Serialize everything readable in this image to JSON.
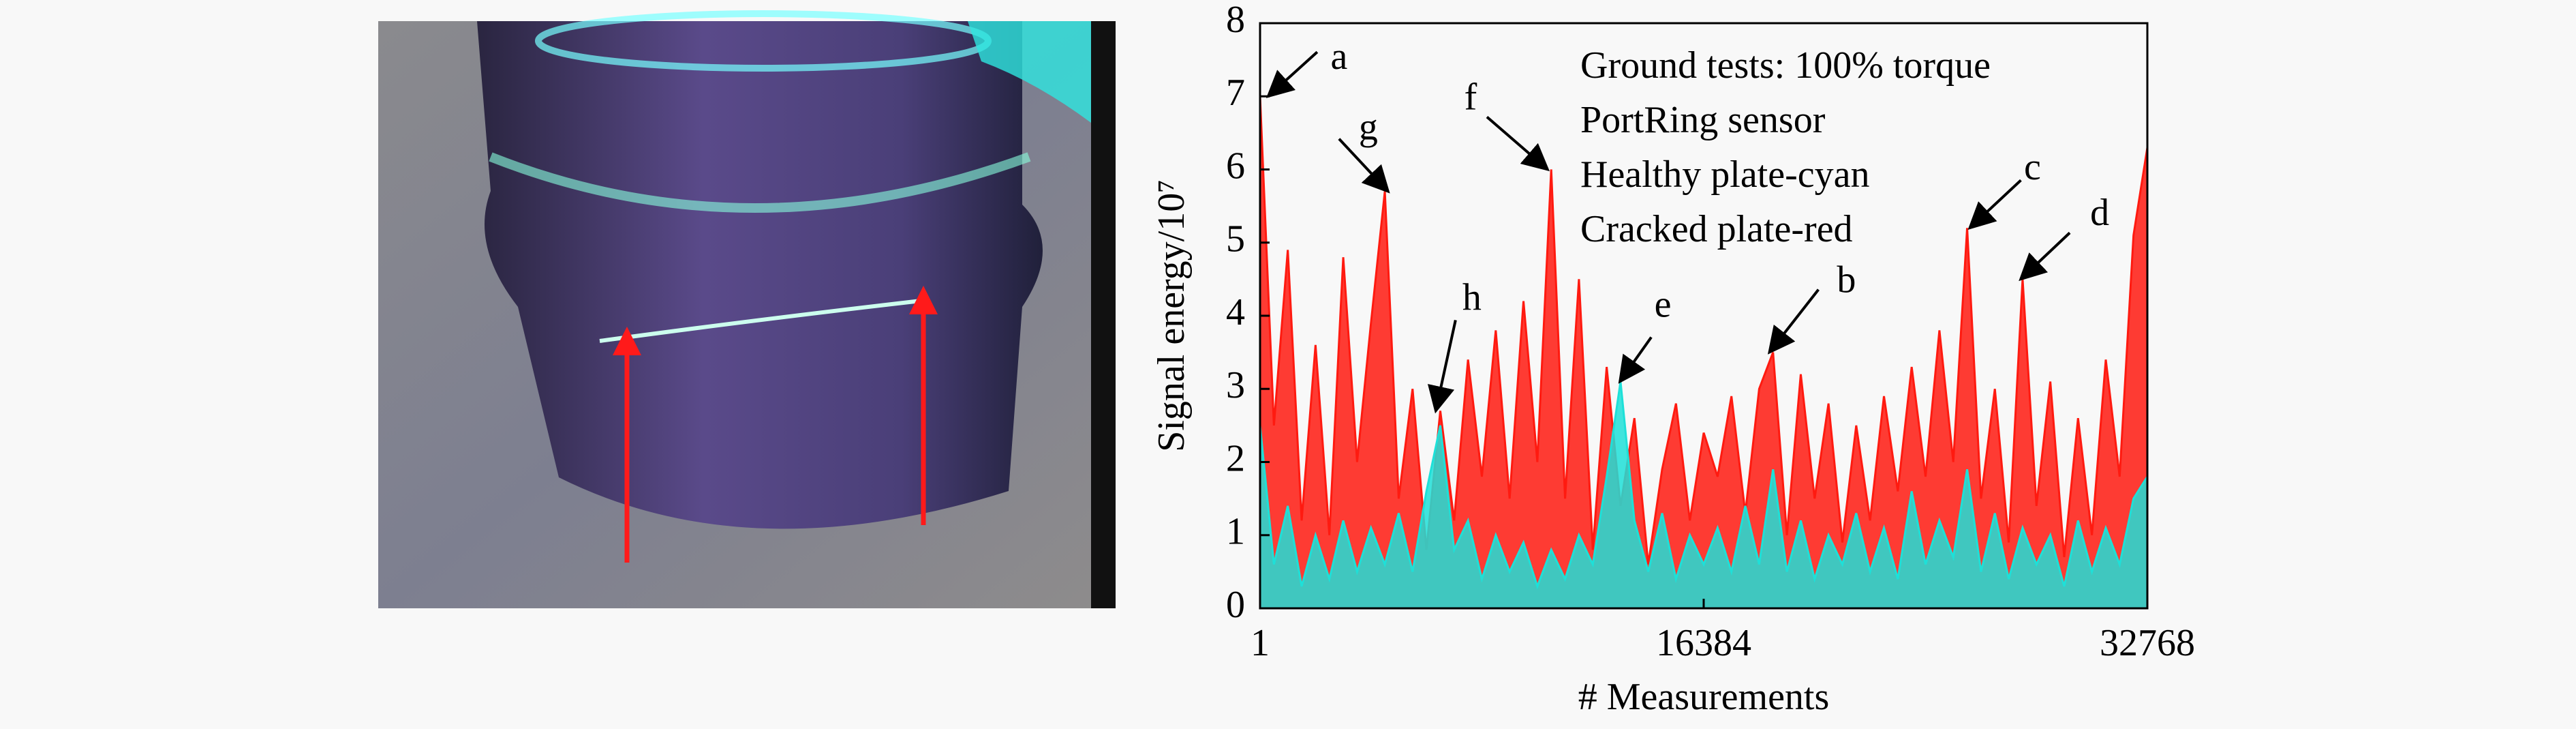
{
  "chart_data": {
    "type": "area",
    "xlabel": "# Measurements",
    "ylabel": "Signal energy/10⁷",
    "notes": [
      "Ground tests: 100% torque",
      "PortRing sensor",
      "Healthy plate-cyan",
      "Cracked plate-red"
    ],
    "xlim": [
      1,
      32768
    ],
    "xticks": [
      1,
      16384,
      32768
    ],
    "ylim": [
      0,
      8
    ],
    "yticks": [
      0,
      1,
      2,
      3,
      4,
      5,
      6,
      7,
      8
    ],
    "x": [
      1,
      513,
      1025,
      1537,
      2049,
      2561,
      3073,
      3585,
      4097,
      4609,
      5121,
      5633,
      6145,
      6657,
      7169,
      7681,
      8193,
      8705,
      9217,
      9729,
      10241,
      10753,
      11265,
      11777,
      12289,
      12801,
      13313,
      13825,
      14337,
      14849,
      15361,
      15873,
      16385,
      16897,
      17409,
      17921,
      18433,
      18945,
      19457,
      19969,
      20481,
      20993,
      21505,
      22017,
      22529,
      23041,
      23553,
      24065,
      24577,
      25089,
      25601,
      26113,
      26625,
      27137,
      27649,
      28161,
      28673,
      29185,
      29697,
      30209,
      30721,
      31233,
      31745,
      32257,
      32768
    ],
    "series": [
      {
        "color": "#ff1a10",
        "values": [
          7.0,
          2.5,
          4.9,
          1.2,
          3.6,
          1.0,
          4.8,
          2.0,
          3.9,
          5.7,
          1.5,
          3.0,
          0.8,
          2.7,
          1.2,
          3.4,
          1.8,
          3.8,
          1.5,
          4.2,
          2.0,
          6.0,
          1.5,
          4.5,
          0.8,
          3.3,
          1.4,
          2.6,
          0.6,
          1.9,
          2.8,
          1.2,
          2.4,
          1.8,
          2.9,
          1.3,
          3.0,
          3.5,
          1.0,
          3.2,
          1.5,
          2.8,
          0.9,
          2.5,
          1.2,
          2.9,
          1.6,
          3.3,
          1.8,
          3.8,
          2.0,
          5.2,
          1.5,
          3.0,
          0.9,
          4.5,
          1.4,
          3.1,
          0.7,
          2.6,
          1.0,
          3.4,
          1.8,
          5.1,
          6.3
        ]
      },
      {
        "color": "#1ee0d8",
        "values": [
          2.5,
          0.6,
          1.4,
          0.3,
          1.0,
          0.4,
          1.2,
          0.5,
          1.1,
          0.6,
          1.3,
          0.5,
          1.6,
          2.5,
          0.8,
          1.2,
          0.4,
          1.0,
          0.5,
          0.9,
          0.3,
          0.8,
          0.4,
          1.0,
          0.6,
          1.8,
          3.1,
          1.2,
          0.5,
          1.3,
          0.4,
          1.0,
          0.6,
          1.1,
          0.5,
          1.4,
          0.6,
          1.9,
          0.5,
          1.2,
          0.4,
          1.0,
          0.6,
          1.3,
          0.5,
          1.1,
          0.4,
          1.6,
          0.6,
          1.2,
          0.7,
          1.9,
          0.5,
          1.3,
          0.4,
          1.1,
          0.6,
          1.0,
          0.3,
          1.2,
          0.5,
          1.1,
          0.6,
          1.5,
          1.8
        ]
      }
    ],
    "annotations": [
      {
        "label": "a",
        "x": 300,
        "y": 7.0
      },
      {
        "label": "g",
        "x": 4730,
        "y": 5.7
      },
      {
        "label": "f",
        "x": 10620,
        "y": 6.0
      },
      {
        "label": "h",
        "x": 6490,
        "y": 2.7
      },
      {
        "label": "e",
        "x": 13290,
        "y": 3.1
      },
      {
        "label": "b",
        "x": 18810,
        "y": 3.5
      },
      {
        "label": "c",
        "x": 26210,
        "y": 5.2
      },
      {
        "label": "d",
        "x": 28090,
        "y": 4.5
      }
    ]
  }
}
